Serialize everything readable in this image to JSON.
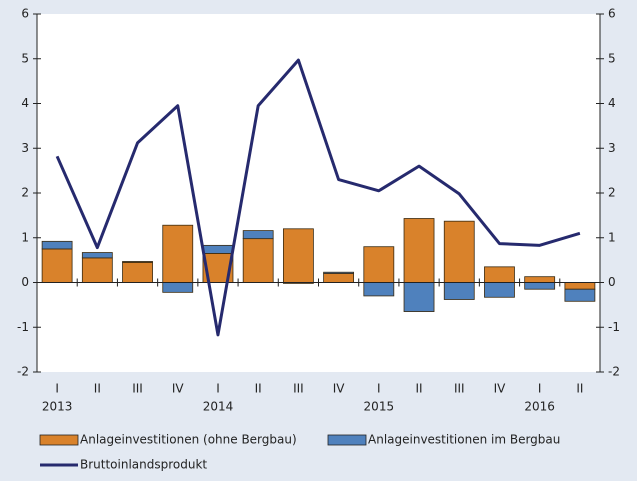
{
  "chart_data": {
    "type": "bar-line",
    "categories": [
      "I",
      "II",
      "III",
      "IV",
      "I",
      "II",
      "III",
      "IV",
      "I",
      "II",
      "III",
      "IV",
      "I",
      "II"
    ],
    "year_labels": [
      "2013",
      null,
      null,
      null,
      "2014",
      null,
      null,
      null,
      "2015",
      null,
      null,
      null,
      "2016",
      null
    ],
    "series": [
      {
        "name": "Anlageinvestitionen (ohne Bergbau)",
        "kind": "bar",
        "color": "#d9822b",
        "values": [
          0.75,
          0.55,
          0.45,
          1.28,
          0.65,
          0.98,
          1.2,
          0.2,
          0.8,
          1.43,
          1.37,
          0.35,
          0.13,
          -0.15
        ]
      },
      {
        "name": "Anlageinvestitionen im Bergbau",
        "kind": "bar",
        "color": "#4f81bd",
        "values": [
          0.17,
          0.12,
          0.02,
          -0.22,
          0.18,
          0.18,
          -0.02,
          0.03,
          -0.3,
          -0.65,
          -0.38,
          -0.33,
          -0.15,
          -0.27
        ]
      },
      {
        "name": "Bruttoinlandsprodukt",
        "kind": "line",
        "color": "#262a6e",
        "values": [
          2.82,
          0.78,
          3.12,
          3.95,
          -1.17,
          3.95,
          4.97,
          2.3,
          2.05,
          2.6,
          1.98,
          0.87,
          0.83,
          1.1
        ]
      }
    ],
    "ylim": [
      -2,
      6
    ],
    "yticks": [
      -2,
      -1,
      0,
      1,
      2,
      3,
      4,
      5,
      6
    ],
    "y2lim": [
      -2,
      6
    ],
    "y2ticks": [
      -2,
      -1,
      0,
      1,
      2,
      3,
      4,
      5,
      6
    ]
  }
}
